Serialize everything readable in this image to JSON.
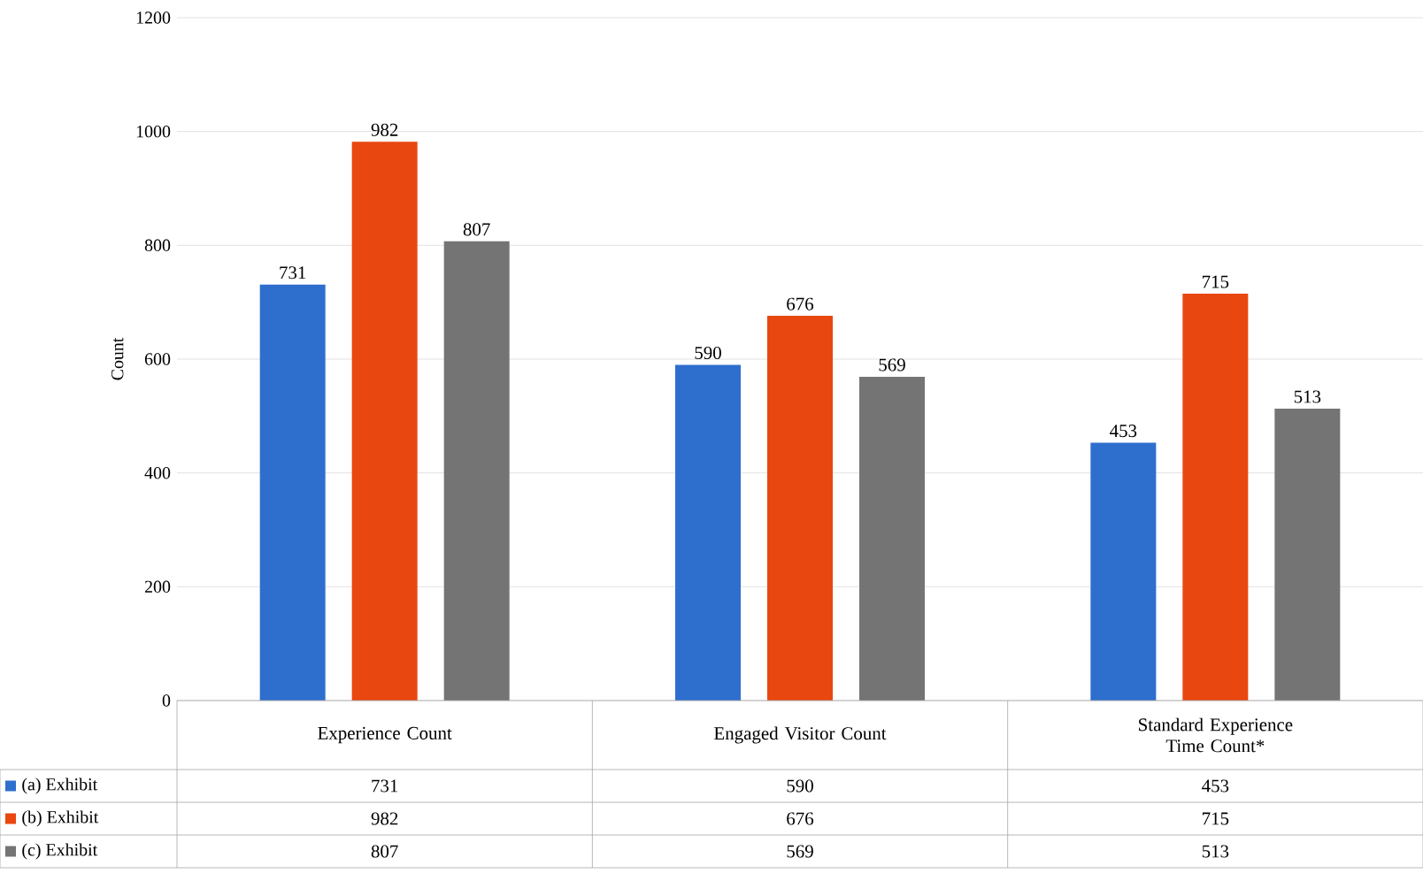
{
  "chart_data": {
    "type": "bar",
    "ylabel": "Count",
    "categories": [
      "Experience Count",
      "Engaged Visitor Count",
      "Standard Experience Time Count*"
    ],
    "series": [
      {
        "name": "(a) Exhibit",
        "color": "#2e6fce",
        "values": [
          731,
          590,
          453
        ],
        "value_labels": [
          "731",
          "590",
          "453"
        ]
      },
      {
        "name": "(b) Exhibit",
        "color": "#e8470f",
        "values": [
          982,
          676,
          715
        ],
        "value_labels": [
          "982",
          "676",
          "715"
        ]
      },
      {
        "name": "(c) Exhibit",
        "color": "#747474",
        "values": [
          807,
          569,
          513
        ],
        "value_labels": [
          "807",
          "569",
          "513"
        ]
      }
    ],
    "annotations": [
      "731",
      "590",
      "453",
      "982",
      "676",
      "715",
      "807",
      "569",
      "513"
    ],
    "ylim": [
      0,
      1200
    ],
    "yticks": [
      0,
      200,
      400,
      600,
      800,
      1000,
      1200
    ],
    "grid": "y",
    "legend": "bottom"
  }
}
